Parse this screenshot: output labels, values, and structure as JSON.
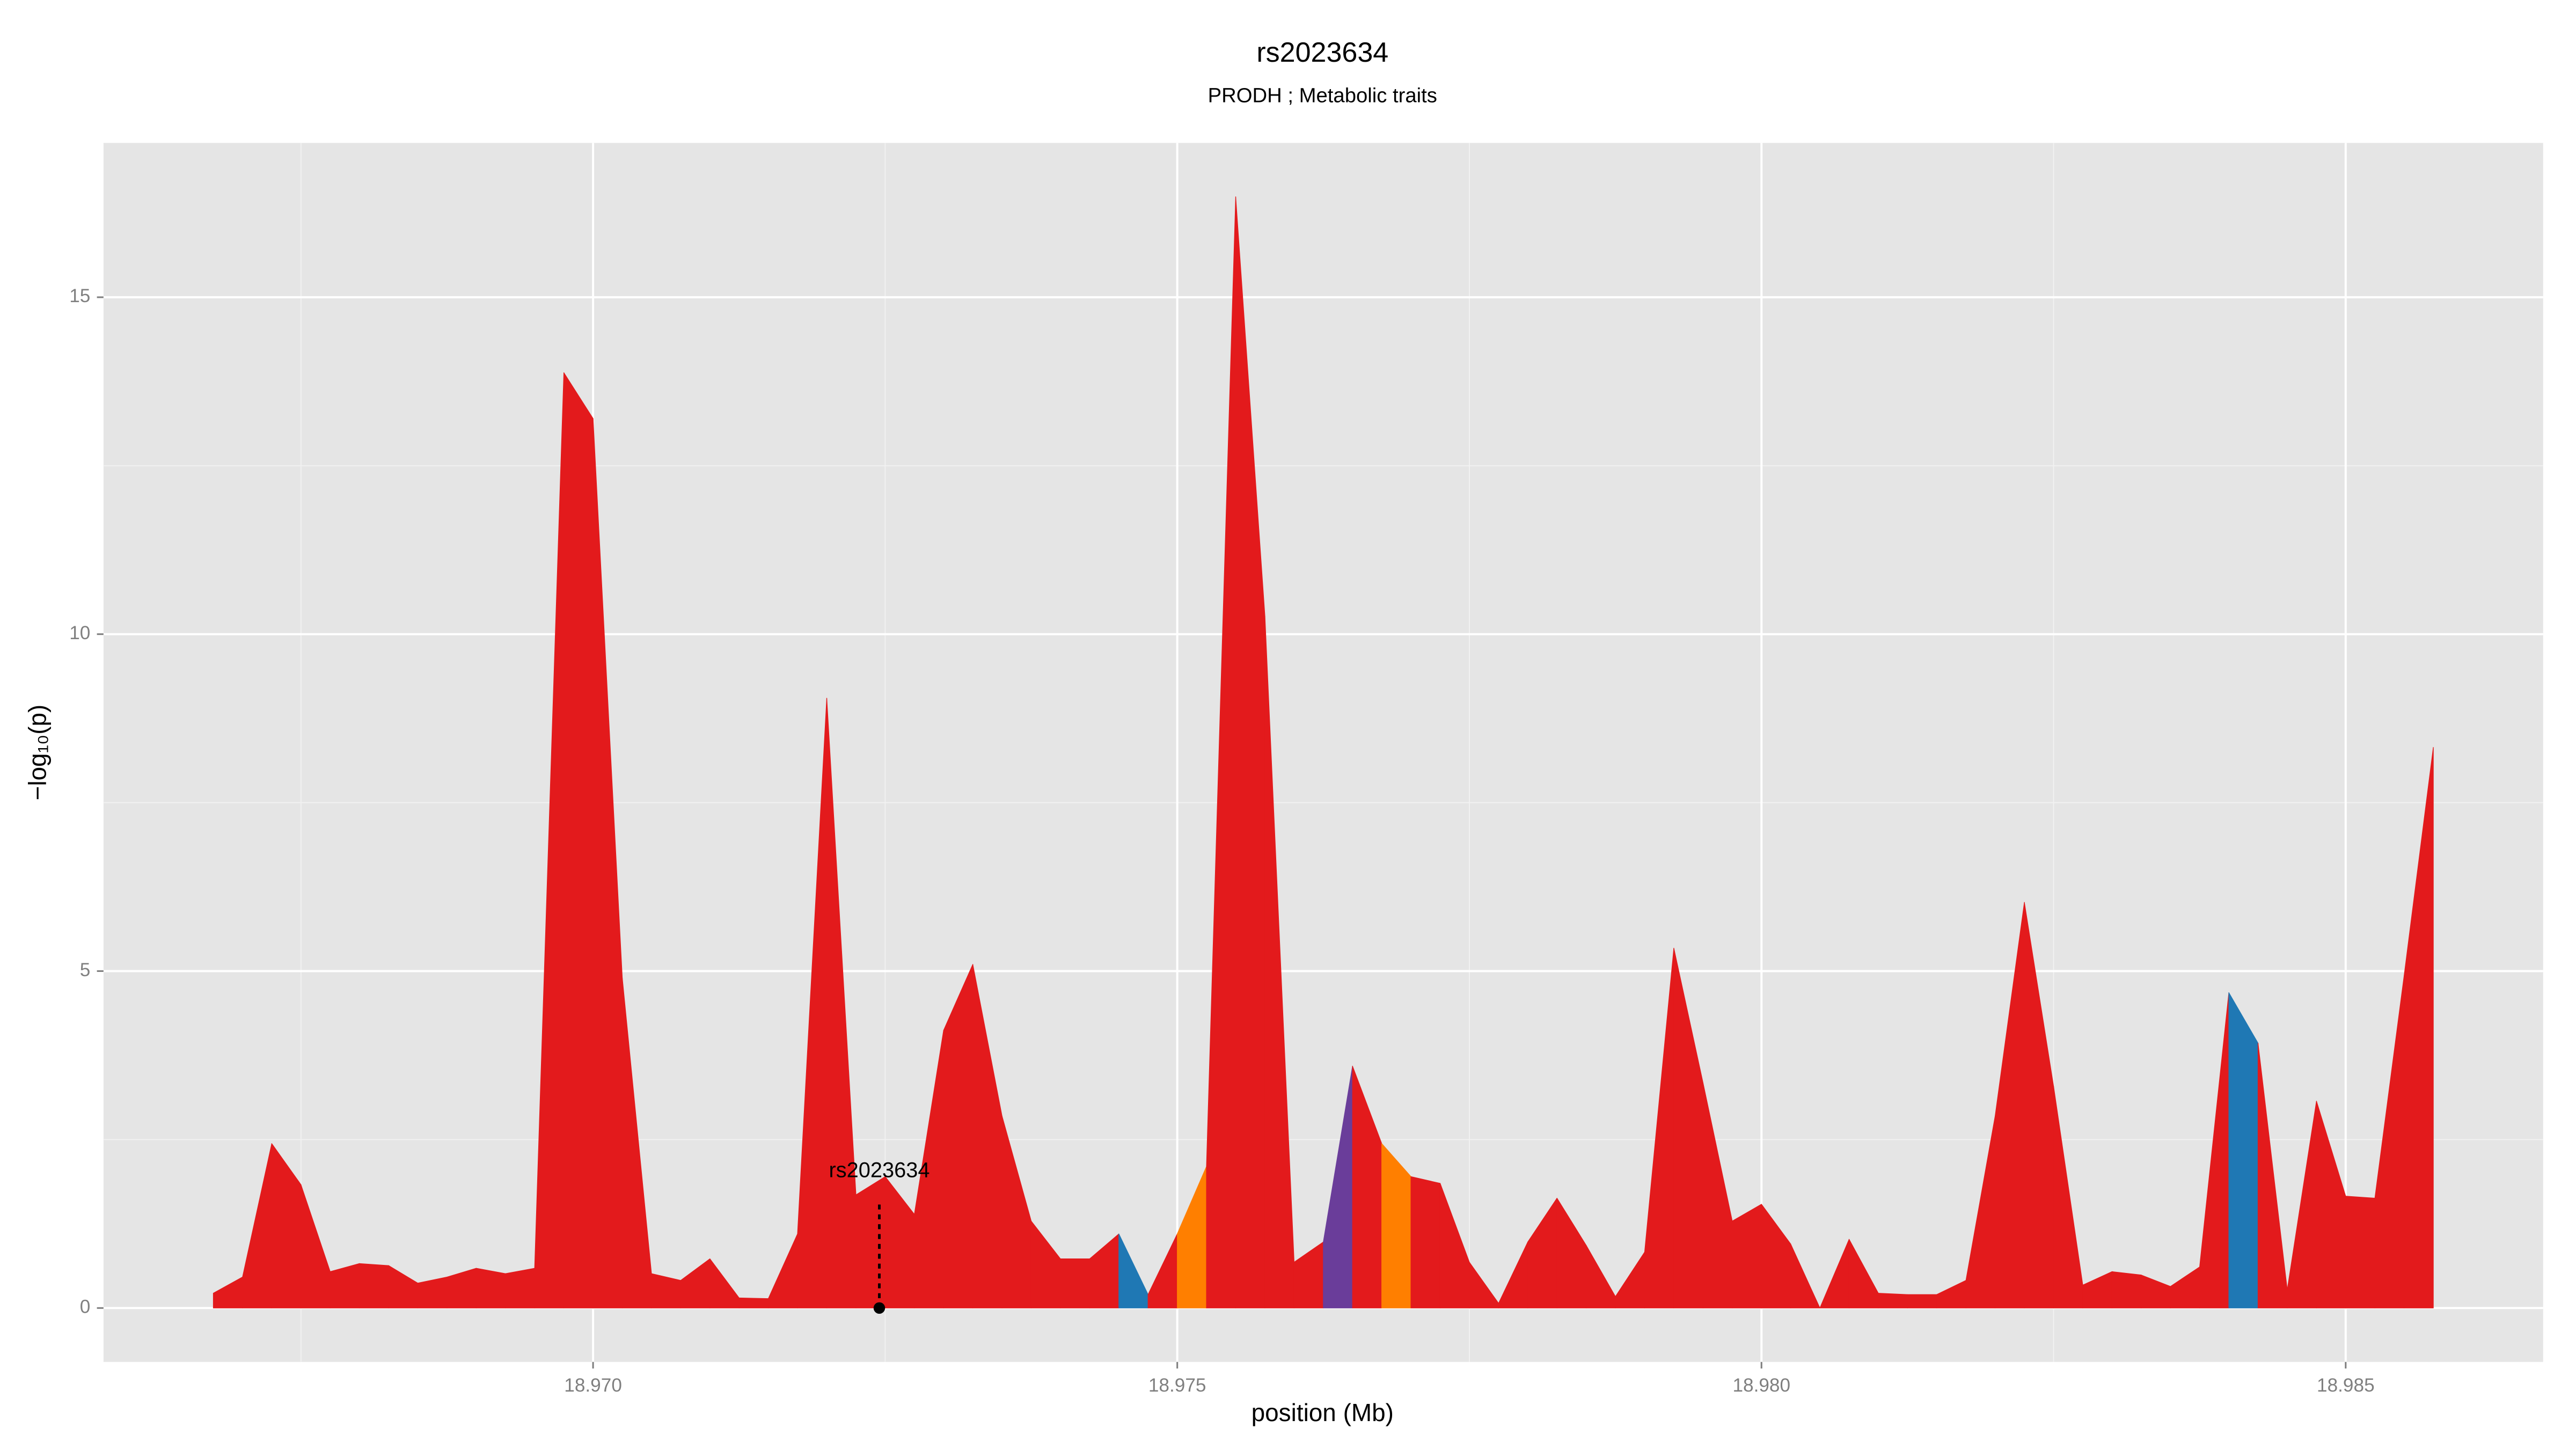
{
  "chart_data": {
    "type": "area",
    "title": "rs2023634",
    "subtitle": "PRODH ; Metabolic traits",
    "x_label": "position (Mb)",
    "y_label": "−log₁₀(p)",
    "xlim": [
      18.96581,
      18.98669
    ],
    "ylim": [
      -0.8,
      17.29
    ],
    "xticks": [
      {
        "value": 18.97,
        "label": "18.970"
      },
      {
        "value": 18.975,
        "label": "18.975"
      },
      {
        "value": 18.98,
        "label": "18.980"
      },
      {
        "value": 18.985,
        "label": "18.985"
      }
    ],
    "yticks": [
      0,
      5,
      10,
      15
    ],
    "xminor": [
      18.9675,
      18.9725,
      18.9775,
      18.9825
    ],
    "yminor": [
      2.5,
      7.5,
      12.5
    ],
    "grid": true,
    "x": [
      18.96675,
      18.967,
      18.96725,
      18.9675,
      18.96775,
      18.968,
      18.96825,
      18.9685,
      18.96875,
      18.969,
      18.96925,
      18.9695,
      18.96975,
      18.97,
      18.97025,
      18.9705,
      18.97075,
      18.971,
      18.97125,
      18.9715,
      18.97175,
      18.972,
      18.97225,
      18.9725,
      18.97275,
      18.973,
      18.97325,
      18.9735,
      18.97375,
      18.974,
      18.97425,
      18.9745,
      18.97475,
      18.975,
      18.97525,
      18.9755,
      18.97575,
      18.976,
      18.97625,
      18.9765,
      18.97675,
      18.977,
      18.97725,
      18.9775,
      18.97775,
      18.978,
      18.97825,
      18.9785,
      18.97875,
      18.979,
      18.97925,
      18.9795,
      18.97975,
      18.98,
      18.98025,
      18.9805,
      18.98075,
      18.981,
      18.98125,
      18.9815,
      18.98175,
      18.982,
      18.98225,
      18.9825,
      18.98275,
      18.983,
      18.98325,
      18.9835,
      18.98375,
      18.984,
      18.98425,
      18.9845,
      18.98475,
      18.985,
      18.98525,
      18.9855,
      18.98575
    ],
    "values": [
      0.22,
      0.46,
      2.44,
      1.83,
      0.54,
      0.66,
      0.63,
      0.37,
      0.46,
      0.59,
      0.51,
      0.59,
      13.88,
      13.2,
      4.9,
      0.51,
      0.41,
      0.73,
      0.15,
      0.14,
      1.1,
      9.05,
      1.68,
      1.95,
      1.39,
      4.12,
      5.1,
      2.85,
      1.29,
      0.73,
      0.73,
      1.1,
      0.2,
      1.1,
      2.1,
      16.49,
      10.27,
      0.68,
      0.98,
      3.59,
      2.44,
      1.95,
      1.85,
      0.68,
      0.07,
      0.98,
      1.63,
      0.93,
      0.17,
      0.83,
      5.34,
      3.34,
      1.29,
      1.54,
      0.95,
      0.0,
      1.02,
      0.22,
      0.2,
      0.2,
      0.41,
      2.85,
      6.02,
      3.29,
      0.34,
      0.54,
      0.49,
      0.32,
      0.61,
      4.68,
      3.93,
      0.27,
      3.07,
      1.66,
      1.63,
      4.93,
      8.32
    ],
    "segment_colors": [
      "#e31a1c",
      "#e31a1c",
      "#e31a1c",
      "#e31a1c",
      "#e31a1c",
      "#e31a1c",
      "#e31a1c",
      "#e31a1c",
      "#e31a1c",
      "#e31a1c",
      "#e31a1c",
      "#e31a1c",
      "#e31a1c",
      "#e31a1c",
      "#e31a1c",
      "#e31a1c",
      "#e31a1c",
      "#e31a1c",
      "#e31a1c",
      "#e31a1c",
      "#e31a1c",
      "#e31a1c",
      "#e31a1c",
      "#e31a1c",
      "#e31a1c",
      "#e31a1c",
      "#e31a1c",
      "#e31a1c",
      "#e31a1c",
      "#e31a1c",
      "#e31a1c",
      "#1f78b4",
      "#e31a1c",
      "#ff7f00",
      "#e31a1c",
      "#e31a1c",
      "#e31a1c",
      "#e31a1c",
      "#6a3d9a",
      "#e31a1c",
      "#ff7f00",
      "#e31a1c",
      "#e31a1c",
      "#e31a1c",
      "#e31a1c",
      "#e31a1c",
      "#e31a1c",
      "#e31a1c",
      "#e31a1c",
      "#e31a1c",
      "#e31a1c",
      "#e31a1c",
      "#e31a1c",
      "#e31a1c",
      "#e31a1c",
      "#e31a1c",
      "#e31a1c",
      "#e31a1c",
      "#e31a1c",
      "#e31a1c",
      "#e31a1c",
      "#e31a1c",
      "#e31a1c",
      "#e31a1c",
      "#e31a1c",
      "#e31a1c",
      "#e31a1c",
      "#e31a1c",
      "#e31a1c",
      "#1f78b4",
      "#e31a1c",
      "#e31a1c",
      "#e31a1c",
      "#e31a1c",
      "#e31a1c",
      "#e31a1c"
    ],
    "annotation": {
      "text": "rs2023634",
      "x": 18.97245,
      "y": 0
    }
  }
}
